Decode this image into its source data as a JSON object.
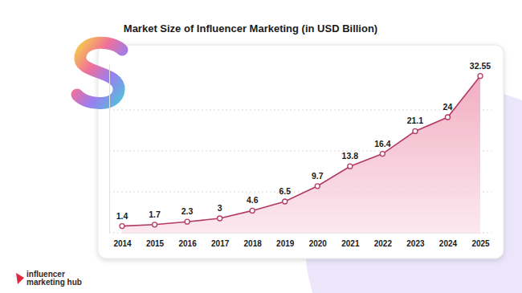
{
  "chart_data": {
    "type": "line",
    "title": "Market Size of Influencer Marketing (in USD Billion)",
    "categories": [
      "2014",
      "2015",
      "2016",
      "2017",
      "2018",
      "2019",
      "2020",
      "2021",
      "2022",
      "2023",
      "2024",
      "2025"
    ],
    "values": [
      1.4,
      1.7,
      2.3,
      3,
      4.6,
      6.5,
      9.7,
      13.8,
      16.4,
      21.1,
      24,
      32.55
    ],
    "color": "#b23a62",
    "ylim": [
      0,
      35
    ],
    "yticks": [
      0,
      8.5,
      17,
      25.5
    ],
    "grid": true,
    "data_labels": true,
    "tick_labels": "x",
    "marker": "circle",
    "line_style": "solid",
    "source_lines": [
      "influencer",
      "marketing hub"
    ]
  }
}
